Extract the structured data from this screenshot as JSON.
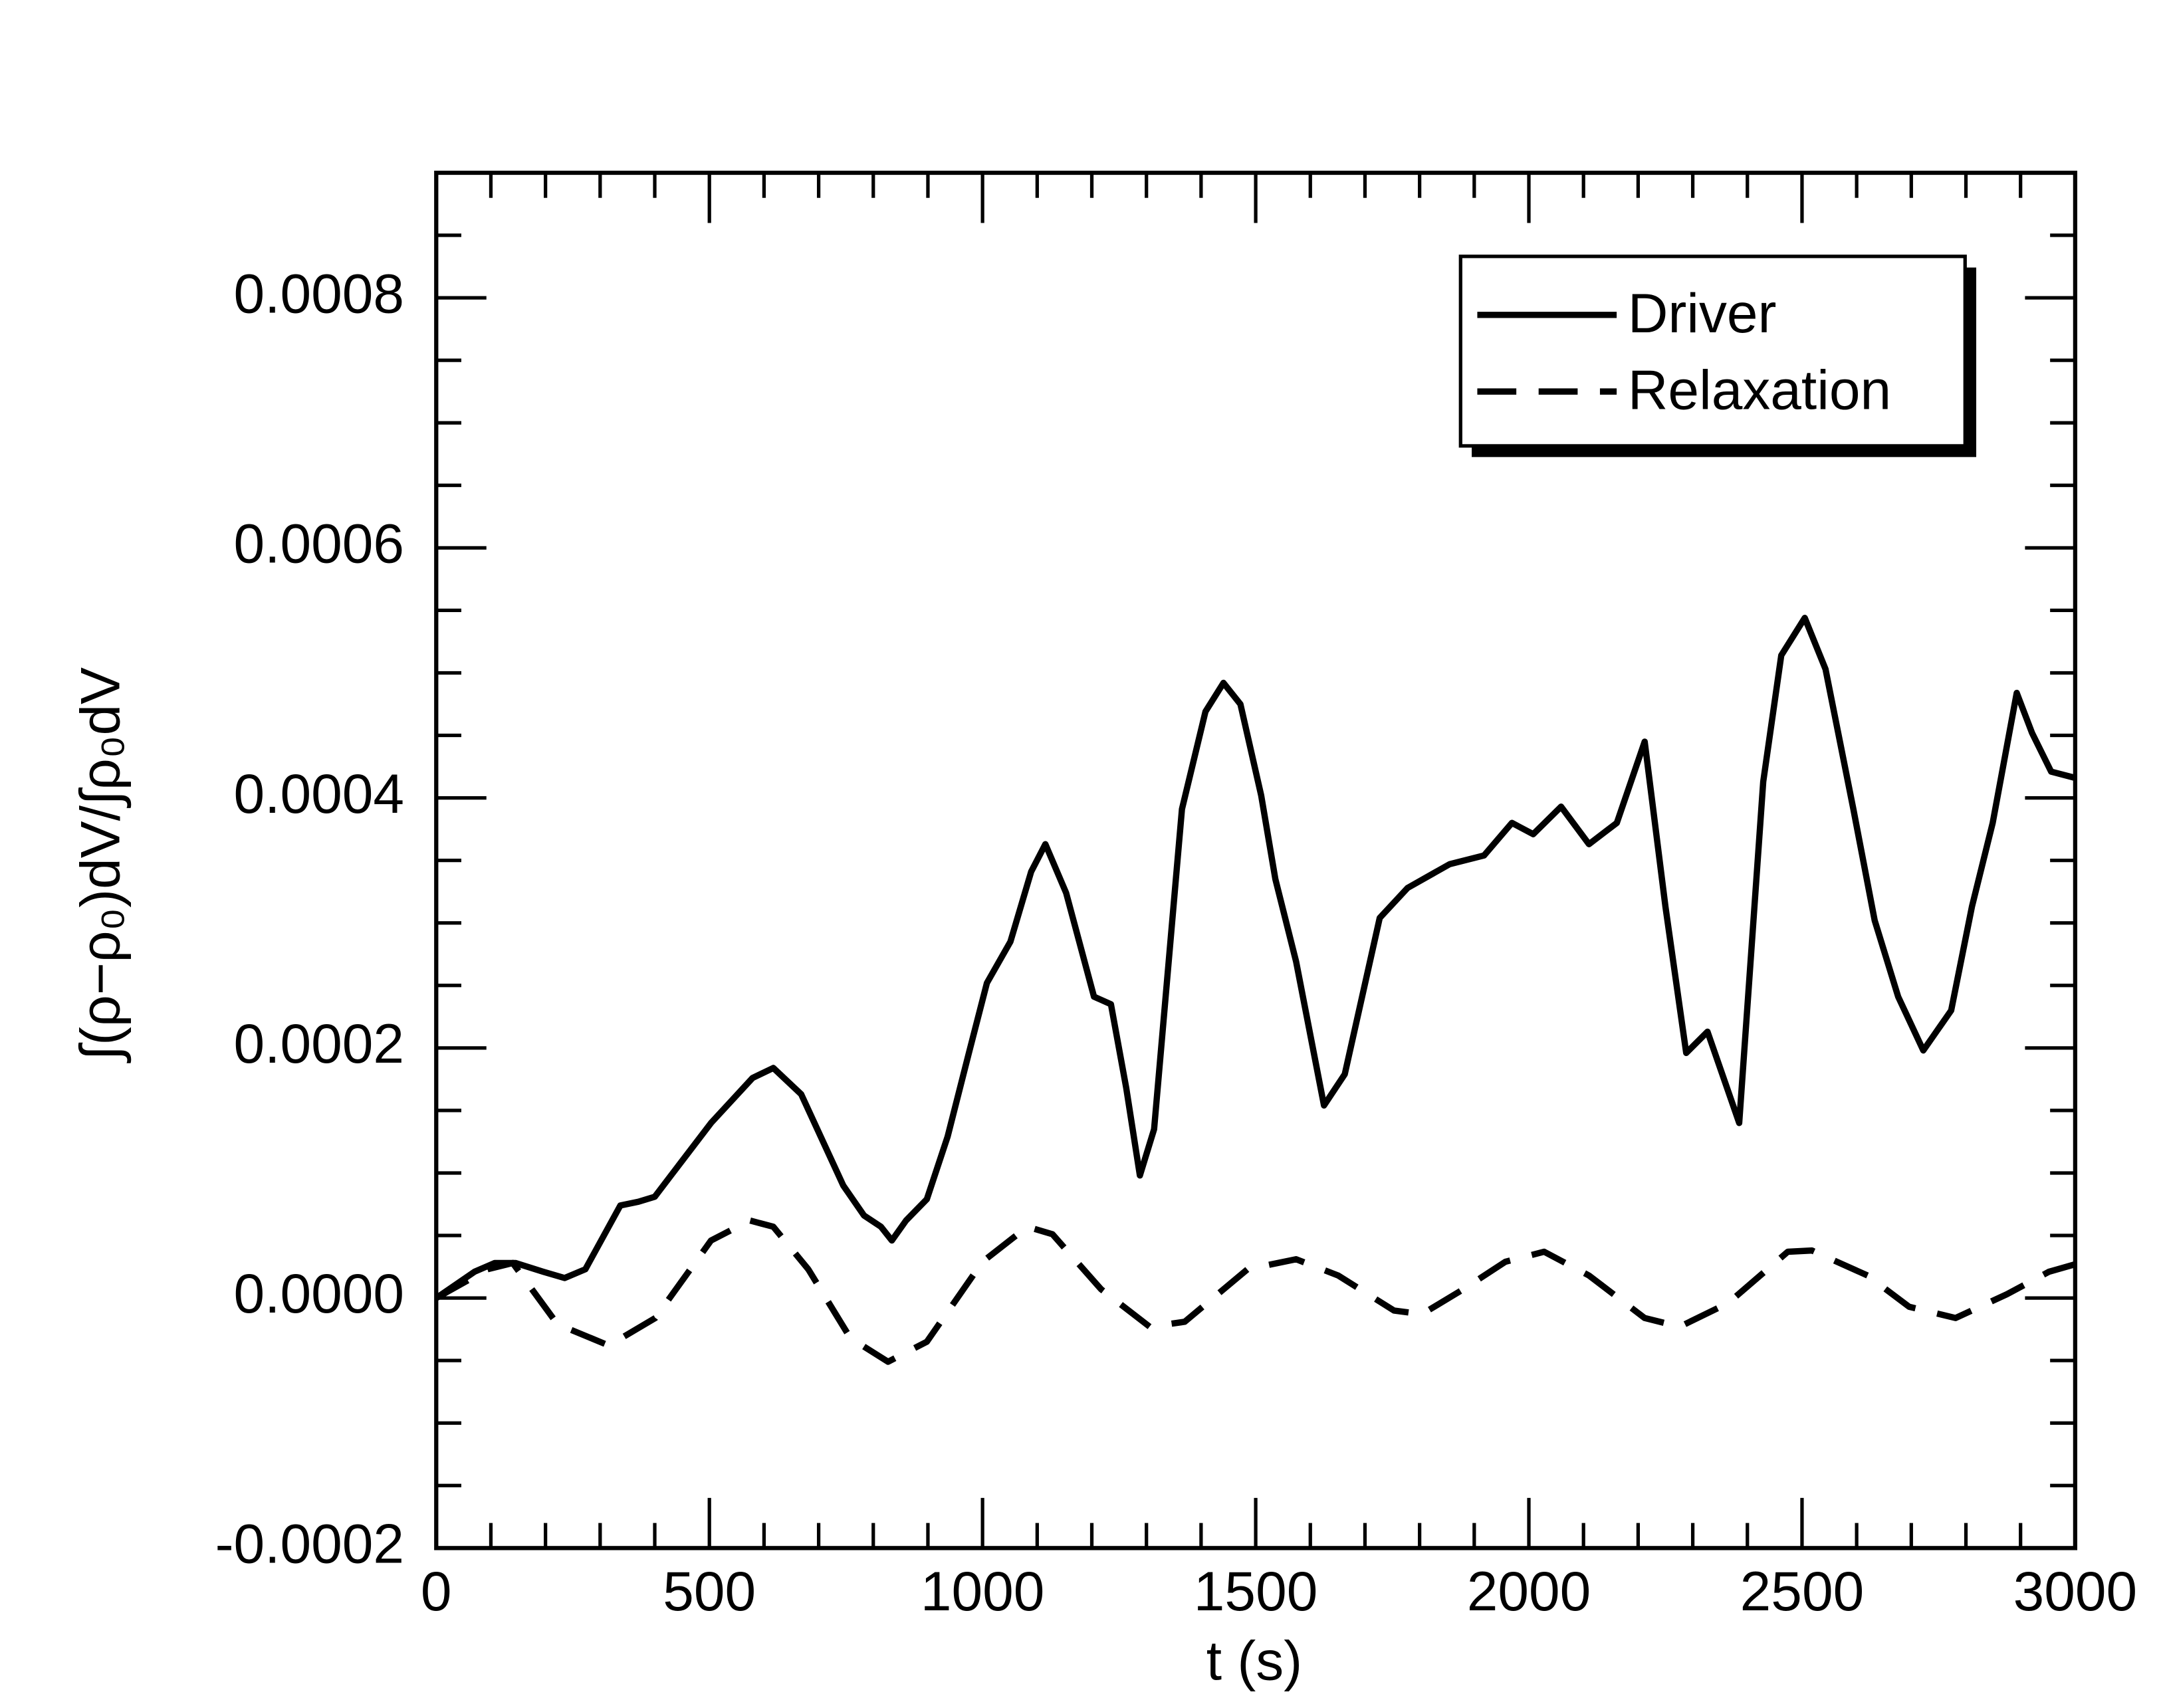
{
  "chart_data": {
    "type": "line",
    "xlabel": "t (s)",
    "ylabel": "∫(ρ−ρ₀)dV/∫ρ₀dV",
    "xlim": [
      0,
      3000
    ],
    "ylim": [
      -0.0002,
      0.0009
    ],
    "xticks": [
      0,
      500,
      1000,
      1500,
      2000,
      2500,
      3000
    ],
    "yticks": [
      {
        "value": -0.0002,
        "label": "-0.0002"
      },
      {
        "value": 0,
        "label": "0.0000"
      },
      {
        "value": 0.0002,
        "label": "0.0002"
      },
      {
        "value": 0.0004,
        "label": "0.0004"
      },
      {
        "value": 0.0006,
        "label": "0.0006"
      },
      {
        "value": 0.0008,
        "label": "0.0008"
      }
    ],
    "xminorticks": [
      100,
      200,
      300,
      400,
      600,
      700,
      800,
      900,
      1100,
      1200,
      1300,
      1400,
      1600,
      1700,
      1800,
      1900,
      2100,
      2200,
      2300,
      2400,
      2600,
      2700,
      2800,
      2900
    ],
    "yminorticks": [
      -0.00015,
      -0.0001,
      -5e-05,
      5e-05,
      0.0001,
      0.00015,
      0.00025,
      0.0003,
      0.00035,
      0.00045,
      0.0005,
      0.00055,
      0.00065,
      0.0007,
      0.00075,
      0.00085
    ],
    "legend": "upper right",
    "series": [
      {
        "name": "Driver",
        "color": "#000000",
        "style": "solid",
        "x": [
          0,
          70,
          107,
          145,
          196,
          235,
          273,
          337,
          370,
          400,
          503,
          579,
          617,
          668,
          745,
          783,
          814,
          834,
          860,
          898,
          936,
          975,
          1008,
          1051,
          1089,
          1115,
          1153,
          1204,
          1235,
          1263,
          1288,
          1314,
          1365,
          1408,
          1441,
          1472,
          1510,
          1536,
          1574,
          1625,
          1663,
          1727,
          1778,
          1855,
          1918,
          1969,
          2008,
          2059,
          2110,
          2161,
          2212,
          2250,
          2288,
          2327,
          2385,
          2429,
          2462,
          2505,
          2543,
          2594,
          2633,
          2676,
          2722,
          2773,
          2811,
          2849,
          2893,
          2921,
          2956,
          3000
        ],
        "values": [
          0,
          2.1e-05,
          2.8e-05,
          2.8e-05,
          2.1e-05,
          1.6e-05,
          2.3e-05,
          7.4e-05,
          7.7e-05,
          8.1e-05,
          0.00014,
          0.000176,
          0.000184,
          0.000163,
          9e-05,
          6.6e-05,
          5.7e-05,
          4.6e-05,
          6.2e-05,
          7.9e-05,
          0.000129,
          0.000196,
          0.000252,
          0.000285,
          0.000341,
          0.000363,
          0.000324,
          0.000241,
          0.000235,
          0.000168,
          9.8e-05,
          0.000135,
          0.000391,
          0.000469,
          0.000492,
          0.000475,
          0.000402,
          0.000335,
          0.000269,
          0.000154,
          0.000179,
          0.000304,
          0.000328,
          0.000347,
          0.000354,
          0.00038,
          0.000371,
          0.000393,
          0.000363,
          0.00038,
          0.000445,
          0.000313,
          0.000196,
          0.000213,
          0.00014,
          0.000413,
          0.000514,
          0.000544,
          0.000503,
          0.000391,
          0.000302,
          0.000241,
          0.000198,
          0.00023,
          0.000313,
          0.00038,
          0.000484,
          0.000452,
          0.000421,
          0.000416
        ]
      },
      {
        "name": "Relaxation",
        "color": "#000000",
        "style": "dashed",
        "x": [
          0,
          94,
          140,
          222,
          316,
          401,
          503,
          574,
          617,
          681,
          758,
          827,
          898,
          1000,
          1082,
          1128,
          1217,
          1306,
          1370,
          1485,
          1574,
          1651,
          1753,
          1804,
          1880,
          1957,
          2028,
          2110,
          2212,
          2276,
          2365,
          2474,
          2518,
          2620,
          2696,
          2781,
          2875,
          2952,
          3000
        ],
        "values": [
          0,
          2.3e-05,
          2.8e-05,
          -2.1e-05,
          -3.8e-05,
          -1.6e-05,
          4.6e-05,
          6.2e-05,
          5.7e-05,
          2.3e-05,
          -3.2e-05,
          -5.1e-05,
          -3.5e-05,
          2.9e-05,
          5.7e-05,
          5.1e-05,
          7e-06,
          -2.3e-05,
          -1.9e-05,
          2.3e-05,
          3.1e-05,
          1.8e-05,
          -1e-05,
          -1.3e-05,
          7e-06,
          2.9e-05,
          3.7e-05,
          1.8e-05,
          -1.6e-05,
          -2.3e-05,
          -4e-06,
          3.7e-05,
          3.8e-05,
          1.8e-05,
          -7e-06,
          -1.6e-05,
          3e-06,
          2.1e-05,
          2.7e-05
        ]
      }
    ]
  }
}
